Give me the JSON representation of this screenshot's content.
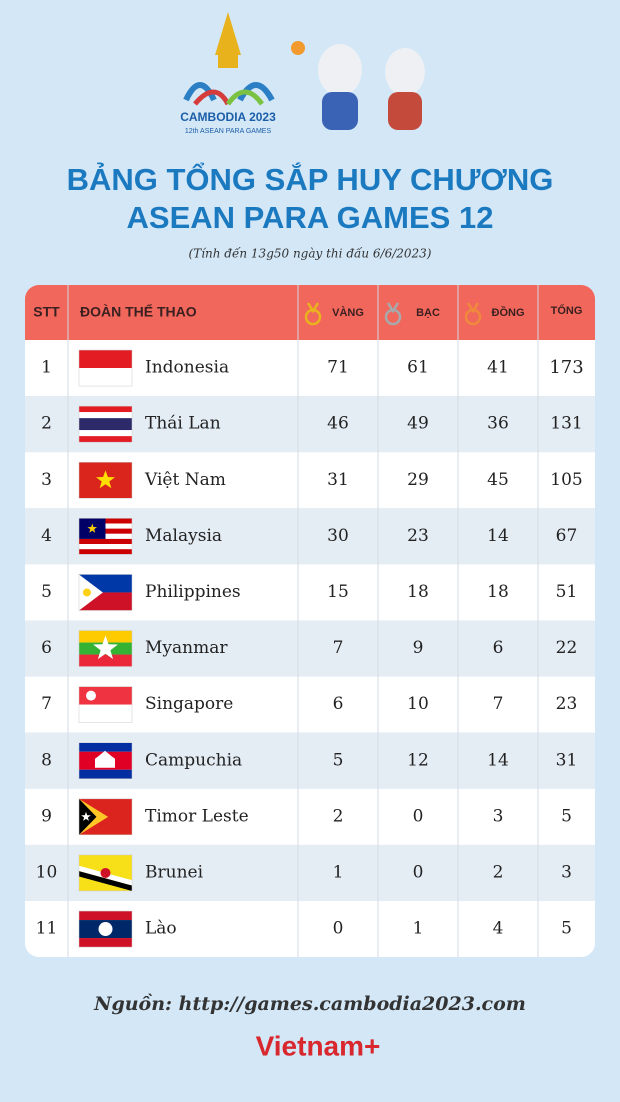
{
  "logo": {
    "name": "CAMBODIA 2023",
    "subtitle": "12th ASEAN PARA GAMES"
  },
  "header": {
    "title_lines": [
      "BẢNG TỔNG SẮP HUY CHƯƠNG",
      "ASEAN PARA GAMES 12"
    ],
    "note": "(Tính đến 13g50 ngày thi đấu 6/6/2023)"
  },
  "table": {
    "columns": [
      "STT",
      "ĐOÀN THỂ THAO",
      "VÀNG",
      "BẠC",
      "ĐỒNG",
      "TỔNG"
    ],
    "rows": [
      [
        1,
        "Indonesia",
        71,
        61,
        41,
        173
      ],
      [
        2,
        "Thái Lan",
        46,
        49,
        36,
        131
      ],
      [
        3,
        "Việt Nam",
        31,
        29,
        45,
        105
      ],
      [
        4,
        "Malaysia",
        30,
        23,
        14,
        67
      ],
      [
        5,
        "Philippines",
        15,
        18,
        18,
        51
      ],
      [
        6,
        "Myanmar",
        7,
        9,
        6,
        22
      ],
      [
        7,
        "Singapore",
        6,
        10,
        7,
        23
      ],
      [
        8,
        "Campuchia",
        5,
        12,
        14,
        31
      ],
      [
        9,
        "Timor Leste",
        2,
        0,
        3,
        5
      ],
      [
        10,
        "Brunei",
        1,
        0,
        2,
        3
      ],
      [
        11,
        "Lào",
        0,
        1,
        4,
        5
      ]
    ]
  },
  "footer": {
    "source": "Nguồn: http://games.cambodia2023.com",
    "brand": "Vietnam+"
  }
}
